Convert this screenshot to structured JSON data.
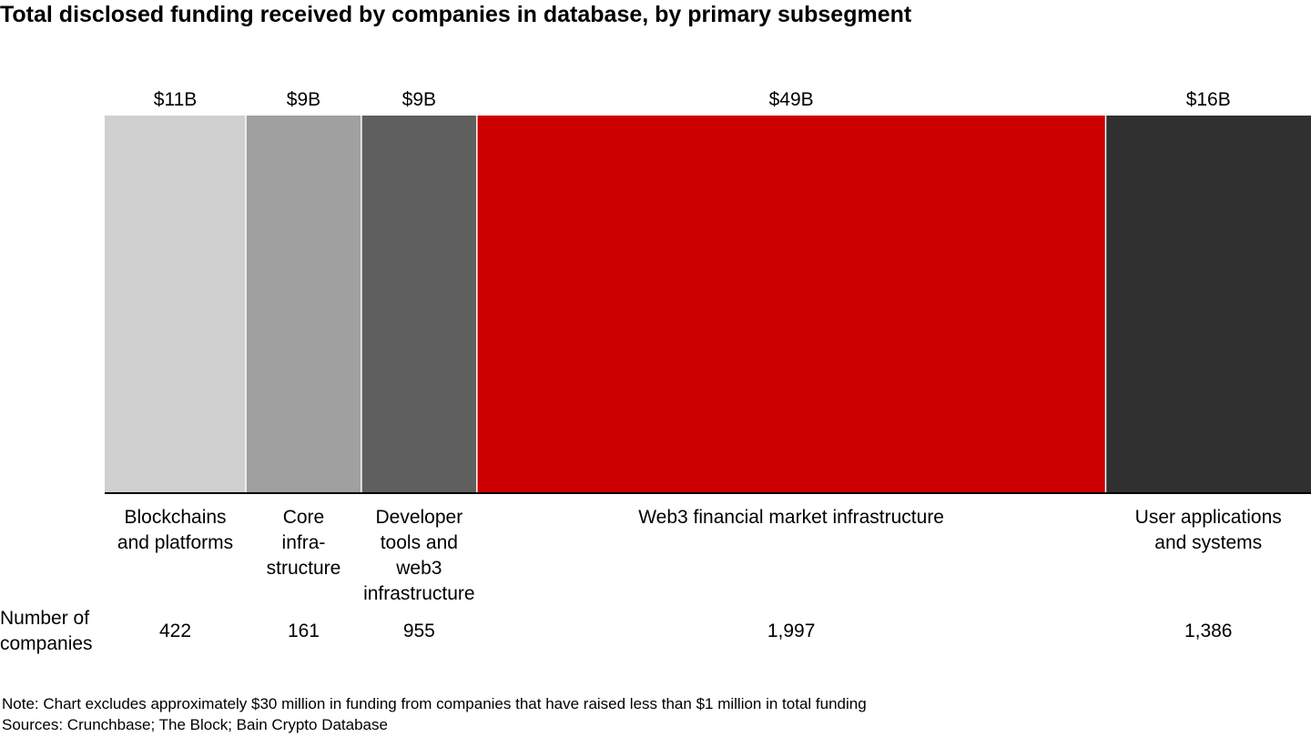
{
  "title": "Total disclosed funding received by companies in database, by primary subsegment",
  "chart_data": {
    "type": "bar",
    "subtype": "marimekko-width-proportional",
    "title": "Total disclosed funding received by companies in database, by primary subsegment",
    "categories": [
      [
        "Blockchains",
        "and platforms"
      ],
      [
        "Core",
        "infra-",
        "structure"
      ],
      [
        "Developer",
        "tools and",
        "web3",
        "infrastructure"
      ],
      [
        "Web3 financial market infrastructure"
      ],
      [
        "User applications",
        "and systems"
      ]
    ],
    "values": [
      11,
      9,
      9,
      49,
      16
    ],
    "value_labels": [
      "$11B",
      "$9B",
      "$9B",
      "$49B",
      "$16B"
    ],
    "value_unit": "$B",
    "colors": [
      "#d0d0d0",
      "#a0a0a0",
      "#5f5f5f",
      "#cc0000",
      "#303030"
    ],
    "companies_label": [
      "Number of",
      "companies"
    ],
    "companies": [
      "422",
      "161",
      "955",
      "1,997",
      "1,386"
    ]
  },
  "note": "Note: Chart excludes approximately $30 million in funding from companies that have raised less than $1 million in total funding",
  "sources": "Sources: Crunchbase; The Block; Bain Crypto Database"
}
